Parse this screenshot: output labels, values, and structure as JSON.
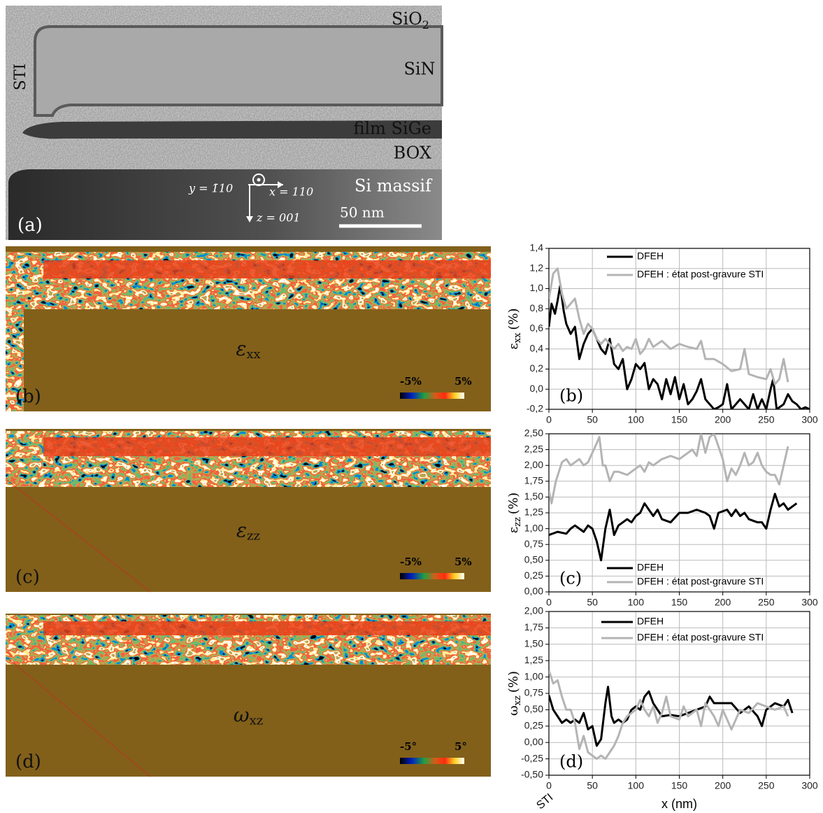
{
  "panel_a": {
    "panel_label": "(a)",
    "sio2": {
      "text": "SiO",
      "subscript": "2"
    },
    "sin": "SiN",
    "sti": "STI",
    "film": "film SiGe",
    "box": "BOX",
    "si": "Si massif",
    "scale": "50 nm",
    "y_dir": "y = 1̄10",
    "x_dir": "x = 110",
    "z_dir": "z = 001"
  },
  "maps": [
    {
      "symbol": "ε",
      "subscript": "xx",
      "panel_label": "(b)",
      "scale_min": "-5%",
      "scale_max": "5%"
    },
    {
      "symbol": "ε",
      "subscript": "zz",
      "panel_label": "(c)",
      "scale_min": "-5%",
      "scale_max": "5%"
    },
    {
      "symbol": "ω",
      "subscript": "xz",
      "panel_label": "(d)",
      "scale_min": "-5°",
      "scale_max": "5°"
    }
  ],
  "chart_data": [
    {
      "type": "line",
      "panel_label": "(b)",
      "ylabel": {
        "symbol": "ε",
        "subscript": "xx",
        "unit": "(%)"
      },
      "legend": "top",
      "grid": true,
      "xlim": [
        0,
        300
      ],
      "xticks": [
        0,
        50,
        100,
        150,
        200,
        250,
        300
      ],
      "ylim": [
        -0.2,
        1.4
      ],
      "yticks": [
        {
          "value": -0.2,
          "label": "-0,2"
        },
        {
          "value": 0,
          "label": "0,0"
        },
        {
          "value": 0.2,
          "label": "0,2"
        },
        {
          "value": 0.4,
          "label": "0,4"
        },
        {
          "value": 0.6,
          "label": "0,6"
        },
        {
          "value": 0.8,
          "label": "0,8"
        },
        {
          "value": 1.0,
          "label": "1,0"
        },
        {
          "value": 1.2,
          "label": "1,2"
        },
        {
          "value": 1.4,
          "label": "1,4"
        }
      ],
      "series": [
        {
          "name": "DFEH",
          "color": "#000000",
          "x": [
            0,
            3,
            7,
            10,
            13,
            17,
            20,
            25,
            30,
            35,
            40,
            45,
            50,
            55,
            60,
            65,
            70,
            75,
            80,
            85,
            90,
            95,
            100,
            105,
            110,
            115,
            120,
            125,
            130,
            135,
            140,
            145,
            150,
            155,
            160,
            165,
            170,
            175,
            180,
            190,
            195,
            200,
            205,
            210,
            220,
            230,
            235,
            240,
            245,
            250,
            255,
            258,
            262,
            270,
            275,
            280,
            285,
            290,
            295,
            300
          ],
          "values": [
            0.62,
            0.85,
            0.75,
            0.88,
            1.03,
            0.78,
            0.65,
            0.55,
            0.62,
            0.3,
            0.45,
            0.55,
            0.6,
            0.5,
            0.4,
            0.35,
            0.5,
            0.25,
            0.2,
            0.3,
            0.0,
            0.1,
            0.25,
            0.2,
            0.26,
            0.0,
            0.1,
            0.05,
            -0.1,
            0.1,
            -0.05,
            0.12,
            -0.1,
            0.05,
            -0.15,
            -0.1,
            -0.02,
            0.1,
            -0.1,
            -0.2,
            -0.18,
            -0.15,
            0.05,
            -0.2,
            -0.1,
            -0.2,
            -0.05,
            -0.2,
            -0.1,
            -0.2,
            0.0,
            0.1,
            -0.2,
            -0.15,
            -0.05,
            -0.12,
            -0.15,
            -0.2,
            -0.18,
            -0.2
          ]
        },
        {
          "name": "DFEH : état post-gravure STI",
          "color": "#b4b4b4",
          "x": [
            0,
            5,
            10,
            15,
            20,
            25,
            30,
            35,
            40,
            45,
            50,
            55,
            60,
            65,
            70,
            75,
            80,
            85,
            90,
            95,
            100,
            105,
            110,
            115,
            120,
            130,
            140,
            150,
            160,
            170,
            175,
            180,
            190,
            200,
            210,
            220,
            225,
            230,
            240,
            250,
            255,
            260,
            265,
            270,
            275
          ],
          "values": [
            0.9,
            1.15,
            1.2,
            0.95,
            0.8,
            0.85,
            0.9,
            0.7,
            0.55,
            0.65,
            0.6,
            0.5,
            0.45,
            0.5,
            0.45,
            0.4,
            0.45,
            0.38,
            0.42,
            0.4,
            0.5,
            0.35,
            0.4,
            0.5,
            0.42,
            0.48,
            0.4,
            0.45,
            0.42,
            0.4,
            0.48,
            0.3,
            0.3,
            0.25,
            0.18,
            0.2,
            0.4,
            0.15,
            0.12,
            0.1,
            0.2,
            0.05,
            0.1,
            0.3,
            0.07
          ]
        }
      ]
    },
    {
      "type": "line",
      "panel_label": "(c)",
      "ylabel": {
        "symbol": "ε",
        "subscript": "zz",
        "unit": "(%)"
      },
      "legend": "bottom",
      "grid": true,
      "xlim": [
        0,
        300
      ],
      "xticks": [
        0,
        50,
        100,
        150,
        200,
        250,
        300
      ],
      "ylim": [
        0,
        2.5
      ],
      "yticks": [
        {
          "value": 0,
          "label": "0,00"
        },
        {
          "value": 0.25,
          "label": "0,25"
        },
        {
          "value": 0.5,
          "label": "0,50"
        },
        {
          "value": 0.75,
          "label": "0,75"
        },
        {
          "value": 1.0,
          "label": "1,00"
        },
        {
          "value": 1.25,
          "label": "1,25"
        },
        {
          "value": 1.5,
          "label": "1,50"
        },
        {
          "value": 1.75,
          "label": "1,75"
        },
        {
          "value": 2.0,
          "label": "2,00"
        },
        {
          "value": 2.25,
          "label": "2,25"
        },
        {
          "value": 2.5,
          "label": "2,50"
        }
      ],
      "series": [
        {
          "name": "DFEH",
          "color": "#000000",
          "x": [
            0,
            10,
            20,
            25,
            30,
            35,
            40,
            45,
            50,
            55,
            60,
            65,
            70,
            75,
            80,
            85,
            90,
            95,
            100,
            105,
            110,
            115,
            120,
            125,
            130,
            140,
            150,
            160,
            170,
            180,
            185,
            190,
            195,
            205,
            210,
            215,
            220,
            225,
            230,
            240,
            245,
            250,
            255,
            260,
            265,
            270,
            275,
            285
          ],
          "values": [
            0.9,
            0.95,
            0.92,
            1.0,
            1.05,
            1.0,
            0.95,
            1.05,
            1.0,
            0.8,
            0.5,
            1.0,
            1.3,
            0.9,
            1.05,
            1.1,
            1.15,
            1.1,
            1.2,
            1.25,
            1.4,
            1.3,
            1.2,
            1.3,
            1.15,
            1.1,
            1.25,
            1.25,
            1.3,
            1.25,
            1.2,
            1.0,
            1.25,
            1.3,
            1.2,
            1.3,
            1.2,
            1.25,
            1.15,
            1.1,
            1.1,
            1.0,
            1.3,
            1.55,
            1.35,
            1.4,
            1.3,
            1.4
          ]
        },
        {
          "name": "DFEH : état post-gravure STI",
          "color": "#b4b4b4",
          "x": [
            0,
            3,
            8,
            15,
            20,
            25,
            30,
            35,
            40,
            45,
            50,
            55,
            58,
            62,
            65,
            70,
            75,
            80,
            90,
            100,
            105,
            110,
            115,
            120,
            130,
            140,
            150,
            160,
            165,
            170,
            175,
            180,
            185,
            190,
            195,
            200,
            205,
            210,
            215,
            220,
            225,
            230,
            235,
            240,
            245,
            250,
            255,
            260,
            265,
            270,
            275
          ],
          "values": [
            1.6,
            1.4,
            1.75,
            2.05,
            2.1,
            2.0,
            2.05,
            2.1,
            2.0,
            2.05,
            2.2,
            2.35,
            2.45,
            2.0,
            2.0,
            1.75,
            1.9,
            1.9,
            1.85,
            1.95,
            2.0,
            1.9,
            2.05,
            2.0,
            2.1,
            2.15,
            2.1,
            2.2,
            2.25,
            2.15,
            2.5,
            2.2,
            2.45,
            2.5,
            2.3,
            2.1,
            1.75,
            1.95,
            1.85,
            2.0,
            2.2,
            2.0,
            2.05,
            2.2,
            2.0,
            1.9,
            1.85,
            1.85,
            1.7,
            2.0,
            2.3
          ]
        }
      ]
    },
    {
      "type": "line",
      "panel_label": "(d)",
      "ylabel": {
        "symbol": "ω",
        "subscript": "xz",
        "unit": "(%)"
      },
      "xlabel": "x (nm)",
      "annotation": "STI",
      "legend": "top",
      "grid": true,
      "xlim": [
        0,
        300
      ],
      "xticks": [
        0,
        50,
        100,
        150,
        200,
        250,
        300
      ],
      "ylim": [
        -0.5,
        2.0
      ],
      "yticks": [
        {
          "value": -0.5,
          "label": "-0,50"
        },
        {
          "value": -0.25,
          "label": "-0,25"
        },
        {
          "value": 0,
          "label": "0,00"
        },
        {
          "value": 0.25,
          "label": "0,25"
        },
        {
          "value": 0.5,
          "label": "0,50"
        },
        {
          "value": 0.75,
          "label": "0,75"
        },
        {
          "value": 1.0,
          "label": "1,00"
        },
        {
          "value": 1.25,
          "label": "1,25"
        },
        {
          "value": 1.5,
          "label": "1,50"
        },
        {
          "value": 1.75,
          "label": "1,75"
        },
        {
          "value": 2.0,
          "label": "2,00"
        }
      ],
      "series": [
        {
          "name": "DFEH",
          "color": "#000000",
          "x": [
            0,
            5,
            10,
            15,
            20,
            25,
            30,
            35,
            40,
            45,
            50,
            55,
            60,
            65,
            68,
            72,
            75,
            80,
            85,
            90,
            95,
            100,
            105,
            110,
            115,
            120,
            125,
            130,
            140,
            150,
            160,
            170,
            180,
            185,
            190,
            200,
            210,
            220,
            230,
            240,
            245,
            250,
            260,
            270,
            275,
            280
          ],
          "values": [
            0.72,
            0.5,
            0.4,
            0.3,
            0.35,
            0.3,
            0.35,
            0.3,
            0.45,
            0.2,
            0.25,
            -0.05,
            0.05,
            0.6,
            0.85,
            0.4,
            0.3,
            0.35,
            0.3,
            0.35,
            0.5,
            0.55,
            0.5,
            0.7,
            0.78,
            0.6,
            0.5,
            0.4,
            0.42,
            0.4,
            0.45,
            0.5,
            0.55,
            0.7,
            0.6,
            0.6,
            0.6,
            0.45,
            0.55,
            0.4,
            0.25,
            0.5,
            0.6,
            0.55,
            0.65,
            0.45
          ]
        },
        {
          "name": "DFEH : état post-gravure STI",
          "color": "#b4b4b4",
          "x": [
            0,
            5,
            10,
            15,
            20,
            25,
            30,
            35,
            40,
            45,
            50,
            55,
            60,
            65,
            70,
            75,
            80,
            85,
            90,
            95,
            100,
            105,
            110,
            115,
            120,
            125,
            130,
            135,
            140,
            150,
            155,
            160,
            170,
            175,
            180,
            190,
            195,
            200,
            210,
            220,
            230,
            240,
            250,
            260,
            270,
            275
          ],
          "values": [
            1.1,
            0.9,
            0.95,
            0.7,
            0.5,
            0.5,
            0.3,
            -0.1,
            0.1,
            -0.15,
            -0.2,
            -0.25,
            -0.2,
            -0.25,
            -0.15,
            -0.05,
            0.1,
            0.3,
            0.4,
            0.45,
            0.5,
            0.65,
            0.5,
            0.4,
            0.55,
            0.3,
            0.45,
            0.7,
            0.4,
            0.35,
            0.55,
            0.4,
            0.5,
            0.25,
            0.6,
            0.4,
            0.25,
            0.5,
            0.2,
            0.5,
            0.45,
            0.6,
            0.55,
            0.5,
            0.55,
            0.4
          ]
        }
      ]
    }
  ]
}
